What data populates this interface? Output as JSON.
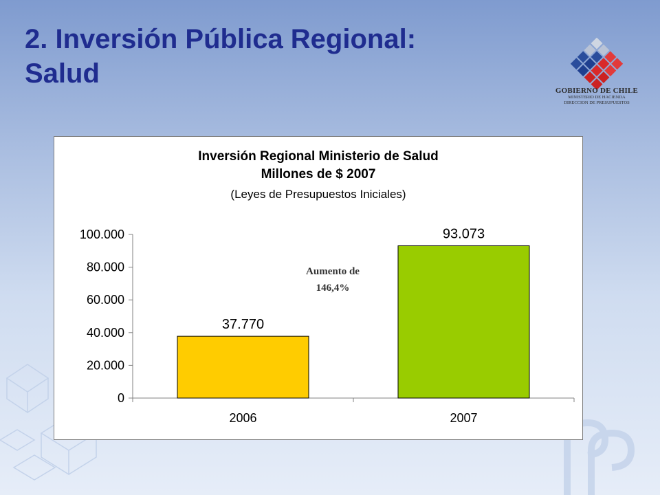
{
  "slide": {
    "title_line1": "2. Inversión Pública Regional:",
    "title_line2": "Salud"
  },
  "logo": {
    "name": "GOBIERNO DE CHILE",
    "sub1": "MINISTERIO DE HACIENDA",
    "sub2": "DIRECCION DE PRESUPUESTOS"
  },
  "colors": {
    "title": "#1f2c8f",
    "bar_2006": "#ffcc00",
    "bar_2007": "#99cc00"
  },
  "chart_data": {
    "type": "bar",
    "title": "Inversión Regional Ministerio de Salud",
    "subtitle": "Millones de $ 2007",
    "subtitle2": "(Leyes de Presupuestos Iniciales)",
    "categories": [
      "2006",
      "2007"
    ],
    "values": [
      37770,
      93073
    ],
    "value_labels": [
      "37.770",
      "93.073"
    ],
    "bar_colors": [
      "#ffcc00",
      "#99cc00"
    ],
    "ylim": [
      0,
      100000
    ],
    "yticks": [
      0,
      20000,
      40000,
      60000,
      80000,
      100000
    ],
    "ytick_labels": [
      "0",
      "20.000",
      "40.000",
      "60.000",
      "80.000",
      "100.000"
    ],
    "xlabel": "",
    "ylabel": "",
    "grid": false,
    "legend": "none",
    "annotation_line1": "Aumento de",
    "annotation_line2": "146,4%"
  }
}
